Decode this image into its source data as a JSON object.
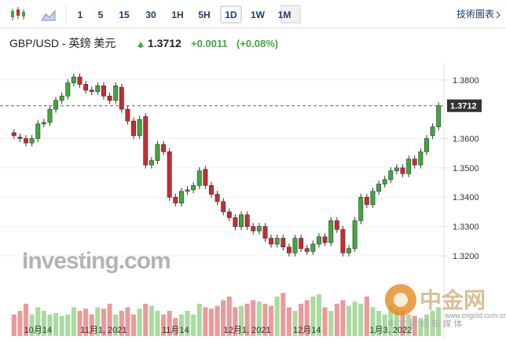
{
  "toolbar": {
    "periods": [
      "1",
      "5",
      "15",
      "30",
      "1H",
      "5H",
      "1D",
      "1W",
      "1M"
    ],
    "active": "1D",
    "link": "技術圖表"
  },
  "header": {
    "title": "GBP/USD - 英鎊 美元",
    "price": "1.3712",
    "change": "+0.0011",
    "change_pct": "(+0.08%)"
  },
  "watermark": "Investing.com",
  "logo": {
    "name": "中金网",
    "url": "www.cngold.com.cn",
    "slogan": "中 文 财 经 新 媒 体"
  },
  "chart_data": {
    "type": "candlestick",
    "categories": [
      null,
      null,
      null,
      null,
      "10月14",
      null,
      null,
      null,
      null,
      null,
      null,
      null,
      null,
      null,
      null,
      "11月1, 2021",
      null,
      null,
      null,
      null,
      null,
      null,
      null,
      null,
      null,
      null,
      null,
      "11月14",
      null,
      null,
      null,
      null,
      null,
      null,
      null,
      null,
      null,
      null,
      null,
      "12月1, 2021",
      null,
      null,
      null,
      null,
      null,
      null,
      null,
      null,
      null,
      "12月14",
      null,
      null,
      null,
      null,
      null,
      null,
      null,
      null,
      null,
      null,
      null,
      null,
      null,
      "1月3, 2022",
      null,
      null,
      null,
      null,
      null,
      null,
      null,
      null
    ],
    "open": [
      1.362,
      1.3605,
      1.36,
      1.3585,
      1.36,
      1.365,
      1.3655,
      1.37,
      1.373,
      1.3745,
      1.379,
      1.381,
      1.3785,
      1.3765,
      1.376,
      1.378,
      1.3745,
      1.373,
      1.3775,
      1.37,
      1.366,
      1.361,
      1.3675,
      1.351,
      1.3525,
      1.358,
      1.3555,
      1.34,
      1.338,
      1.342,
      1.3425,
      1.344,
      1.3495,
      1.344,
      1.341,
      1.3385,
      1.335,
      1.333,
      1.33,
      1.334,
      1.33,
      1.3285,
      1.33,
      1.326,
      1.324,
      1.326,
      1.323,
      1.321,
      1.326,
      1.3225,
      1.3215,
      1.324,
      1.3265,
      1.3245,
      1.332,
      1.329,
      1.321,
      1.3225,
      1.332,
      1.34,
      1.3375,
      1.342,
      1.3445,
      1.346,
      1.349,
      1.35,
      1.348,
      1.353,
      1.351,
      1.3555,
      1.361,
      1.364
    ],
    "high": [
      1.3632,
      1.3617,
      1.3612,
      1.3612,
      1.3662,
      1.3667,
      1.3712,
      1.3742,
      1.3757,
      1.3802,
      1.3822,
      1.3822,
      1.3797,
      1.3777,
      1.3792,
      1.3792,
      1.3757,
      1.3792,
      1.3787,
      1.3712,
      1.3672,
      1.3677,
      1.3687,
      1.3537,
      1.3592,
      1.3592,
      1.3567,
      1.3412,
      1.3432,
      1.3437,
      1.3452,
      1.3502,
      1.3507,
      1.3452,
      1.3422,
      1.3397,
      1.3362,
      1.3342,
      1.3352,
      1.3352,
      1.3312,
      1.3312,
      1.3312,
      1.3272,
      1.3272,
      1.3272,
      1.3242,
      1.3272,
      1.3272,
      1.3237,
      1.3252,
      1.3277,
      1.3277,
      1.3332,
      1.3332,
      1.3302,
      1.3237,
      1.3332,
      1.3412,
      1.3412,
      1.3432,
      1.3457,
      1.3472,
      1.3502,
      1.3512,
      1.3512,
      1.3542,
      1.3542,
      1.3567,
      1.3612,
      1.3652,
      1.3724
    ],
    "low": [
      1.3598,
      1.3588,
      1.3573,
      1.3573,
      1.3588,
      1.3638,
      1.3643,
      1.3688,
      1.3718,
      1.3733,
      1.3778,
      1.3773,
      1.3753,
      1.3748,
      1.3748,
      1.3733,
      1.3718,
      1.3718,
      1.3688,
      1.3648,
      1.3598,
      1.3598,
      1.3498,
      1.3498,
      1.3513,
      1.3543,
      1.3388,
      1.3368,
      1.3368,
      1.3408,
      1.3413,
      1.3428,
      1.3428,
      1.3398,
      1.3373,
      1.3338,
      1.3318,
      1.3288,
      1.3288,
      1.3288,
      1.3273,
      1.3273,
      1.3248,
      1.3228,
      1.3228,
      1.3218,
      1.3198,
      1.3198,
      1.3213,
      1.3203,
      1.3203,
      1.3228,
      1.3233,
      1.3233,
      1.3278,
      1.3198,
      1.3198,
      1.3213,
      1.3308,
      1.3363,
      1.3363,
      1.3408,
      1.3433,
      1.3448,
      1.3478,
      1.3468,
      1.3468,
      1.3498,
      1.3498,
      1.3543,
      1.3598,
      1.3628
    ],
    "close": [
      1.361,
      1.36,
      1.3585,
      1.36,
      1.365,
      1.3655,
      1.37,
      1.373,
      1.3745,
      1.379,
      1.381,
      1.3785,
      1.3765,
      1.376,
      1.378,
      1.3745,
      1.373,
      1.378,
      1.37,
      1.366,
      1.361,
      1.3665,
      1.351,
      1.3525,
      1.358,
      1.3555,
      1.34,
      1.338,
      1.342,
      1.3425,
      1.344,
      1.349,
      1.344,
      1.341,
      1.3385,
      1.335,
      1.333,
      1.33,
      1.334,
      1.33,
      1.3285,
      1.33,
      1.326,
      1.324,
      1.326,
      1.323,
      1.321,
      1.326,
      1.3225,
      1.3215,
      1.324,
      1.3265,
      1.3245,
      1.332,
      1.329,
      1.321,
      1.3225,
      1.332,
      1.34,
      1.3375,
      1.342,
      1.3445,
      1.346,
      1.349,
      1.35,
      1.348,
      1.353,
      1.351,
      1.3555,
      1.36,
      1.364,
      1.3712
    ],
    "volume": [
      30,
      35,
      45,
      30,
      40,
      35,
      30,
      32,
      28,
      30,
      40,
      35,
      38,
      30,
      40,
      38,
      45,
      30,
      35,
      40,
      30,
      38,
      45,
      42,
      35,
      30,
      35,
      25,
      30,
      35,
      30,
      45,
      40,
      38,
      42,
      50,
      55,
      40,
      42,
      45,
      50,
      48,
      45,
      42,
      55,
      60,
      40,
      35,
      45,
      50,
      55,
      58,
      40,
      35,
      45,
      50,
      42,
      48,
      45,
      55,
      40,
      35,
      30,
      42,
      38,
      35,
      30,
      28,
      25,
      30,
      35,
      40
    ],
    "volume_lim": [
      0,
      80
    ],
    "up_color": "#3caa3c",
    "down_color": "#d0282e",
    "up_volume_color": "#a9dba0",
    "down_volume_color": "#ea9a9a",
    "ylim": [
      1.3149,
      1.3837
    ],
    "yticks": [
      {
        "value": 1.32,
        "label": "1.3200"
      },
      {
        "value": 1.33,
        "label": "1.3300"
      },
      {
        "value": 1.34,
        "label": "1.3400"
      },
      {
        "value": 1.35,
        "label": "1.3500"
      },
      {
        "value": 1.36,
        "label": "1.3600"
      },
      {
        "value": 1.38,
        "label": "1.3800"
      }
    ],
    "last_price": {
      "value": 1.3712,
      "label": "1.3712"
    },
    "grid": true
  }
}
